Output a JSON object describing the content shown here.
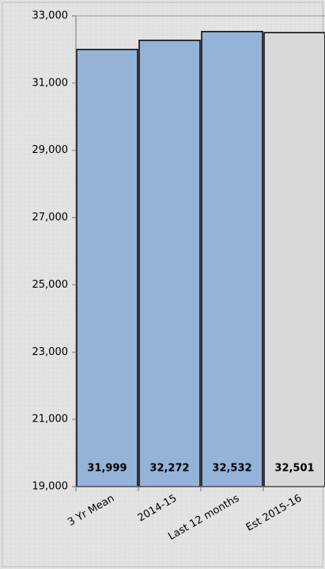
{
  "chart_data": {
    "type": "bar",
    "categories": [
      "3 Yr Mean",
      "2014-15",
      "Last 12 months",
      "Est 2015-16"
    ],
    "values": [
      31999,
      32272,
      32532,
      32501
    ],
    "value_labels": [
      "31,999",
      "32,272",
      "32,532",
      "32,501"
    ],
    "colors": [
      "#95b3d7",
      "#95b3d7",
      "#95b3d7",
      "#d9d9d9"
    ],
    "ylim": [
      19000,
      33000
    ],
    "yticks": [
      {
        "value": 19000,
        "label": "19,000"
      },
      {
        "value": 21000,
        "label": "21,000"
      },
      {
        "value": 23000,
        "label": "23,000"
      },
      {
        "value": 25000,
        "label": "25,000"
      },
      {
        "value": 27000,
        "label": "27,000"
      },
      {
        "value": 29000,
        "label": "29,000"
      },
      {
        "value": 31000,
        "label": "31,000"
      },
      {
        "value": 33000,
        "label": "33,000"
      }
    ],
    "grid": false
  }
}
